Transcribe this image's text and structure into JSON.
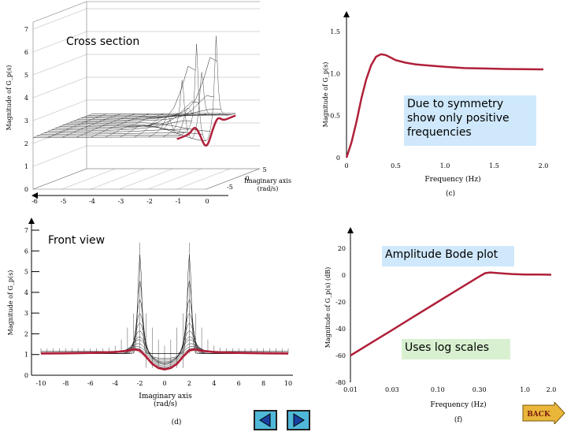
{
  "callouts": {
    "cross_section": "Cross section",
    "front_view": "Front  view",
    "symmetry": "Due to symmetry show only positive frequencies",
    "amplitude_bode": "Amplitude Bode plot",
    "log_scales": "Uses log scales"
  },
  "nav": {
    "back_label": "BACK"
  },
  "colors": {
    "response_curve": "#b0203a",
    "mesh": "#222222",
    "symmetry_box": "#cfe8fb",
    "bode_box": "#d8f0d0"
  },
  "chart_data": [
    {
      "id": "a",
      "type": "surface",
      "ylabel": "Magnitude of G_p(s)",
      "xlabel": "Imaginary axis (rad/s)",
      "zticks": [
        "0",
        "1",
        "2",
        "3",
        "4",
        "5",
        "6",
        "7"
      ],
      "realticks": [
        "-6",
        "-5",
        "-4",
        "-3",
        "-2",
        "-1",
        "0"
      ],
      "imagticks": [
        "0",
        "5"
      ],
      "imag_side_ticks": [
        "5",
        "0",
        "-5"
      ]
    },
    {
      "id": "b",
      "type": "line",
      "caption": "(c)",
      "xlabel": "Frequency (Hz)",
      "ylabel": "Magnitude of G_p(s)",
      "xticks": [
        "0",
        "0.5",
        "1.0",
        "1.5",
        "2.0"
      ],
      "yticks": [
        "0",
        "0.5",
        "1.0",
        "1.5"
      ],
      "xlim": [
        0,
        2.0
      ],
      "ylim": [
        0,
        1.5
      ],
      "series": [
        {
          "x": [
            0,
            0.05,
            0.1,
            0.15,
            0.2,
            0.25,
            0.3,
            0.35,
            0.4,
            0.45,
            0.5,
            0.6,
            0.7,
            0.8,
            1.0,
            1.2,
            1.4,
            1.6,
            1.8,
            2.0
          ],
          "y": [
            0,
            0.18,
            0.42,
            0.7,
            0.93,
            1.1,
            1.2,
            1.23,
            1.22,
            1.19,
            1.16,
            1.13,
            1.11,
            1.1,
            1.08,
            1.065,
            1.06,
            1.055,
            1.052,
            1.05
          ]
        }
      ]
    },
    {
      "id": "c",
      "type": "line",
      "caption": "(d)",
      "xlabel": "Imaginary axis (rad/s)",
      "ylabel": "Magnitude of G_p(s)",
      "xticks": [
        "-10",
        "-8",
        "-6",
        "-4",
        "-2",
        "0",
        "2",
        "4",
        "6",
        "8",
        "10"
      ],
      "yticks": [
        "0",
        "1",
        "2",
        "3",
        "4",
        "5",
        "6",
        "7"
      ],
      "xlim": [
        -10,
        10
      ],
      "ylim": [
        0,
        7
      ],
      "series": [
        {
          "x": [
            -10,
            -8,
            -6,
            -4,
            -3,
            -2.5,
            -2,
            -1.5,
            -1,
            -0.5,
            0,
            0.5,
            1,
            1.5,
            2,
            2.5,
            3,
            4,
            6,
            8,
            10
          ],
          "y": [
            1.05,
            1.06,
            1.08,
            1.12,
            1.18,
            1.25,
            1.2,
            0.9,
            0.55,
            0.35,
            0.28,
            0.35,
            0.55,
            0.9,
            1.2,
            1.25,
            1.18,
            1.12,
            1.08,
            1.06,
            1.05
          ]
        }
      ],
      "mesh_peaks": [
        6.4,
        0.9
      ]
    },
    {
      "id": "d",
      "type": "line",
      "caption": "(f)",
      "xlabel": "Frequency (Hz)",
      "ylabel": "Magnitude of G_p(s) (dB)",
      "xscale": "log",
      "xticks": [
        "0.01",
        "0.03",
        "0.10",
        "0.30",
        "1.0",
        "2.0"
      ],
      "yticks": [
        "20",
        "0",
        "-20",
        "-40",
        "-60",
        "-80"
      ],
      "xlim": [
        0.01,
        2.0
      ],
      "ylim": [
        -80,
        20
      ],
      "series": [
        {
          "x": [
            0.01,
            0.02,
            0.03,
            0.05,
            0.1,
            0.2,
            0.3,
            0.35,
            0.4,
            0.5,
            0.7,
            1.0,
            1.5,
            2.0
          ],
          "y": [
            -60,
            -48,
            -41,
            -32,
            -20,
            -8,
            -1,
            1.5,
            2,
            1.5,
            0.8,
            0.5,
            0.4,
            0.3
          ]
        }
      ]
    }
  ]
}
